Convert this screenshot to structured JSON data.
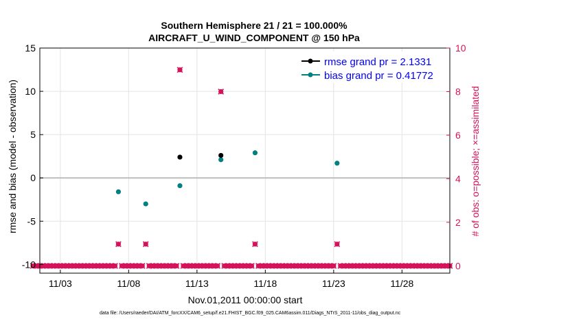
{
  "chart_data": {
    "type": "scatter",
    "title": "Southern Hemisphere 21 / 21 = 100.000%",
    "subtitle": "AIRCRAFT_U_WIND_COMPONENT @ 150 hPa",
    "xlabel": "Nov.01,2011 00:00:00 start",
    "ylabel": "rmse and bias (model - observation)",
    "y2label": "# of obs: o=possible; ×=assimilated",
    "footer": "data file: /Users/raeder/DAI/ATM_forcXX/CAM6_setup/f.e21.FHIST_BGC.f09_025.CAM6assim.011/Diags_NTrS_2011-11/obs_diag_output.nc",
    "xlim": [
      1.5,
      31.5
    ],
    "ylim": [
      -11,
      15
    ],
    "y2lim": [
      -0.3333,
      10
    ],
    "x_ticks": [
      3,
      8,
      13,
      18,
      23,
      28
    ],
    "x_tick_labels": [
      "11/03",
      "11/08",
      "11/13",
      "11/18",
      "11/23",
      "11/28"
    ],
    "y_ticks": [
      15,
      10,
      5,
      0,
      -5,
      -10
    ],
    "y_tick_labels": [
      "15",
      "10",
      "5",
      "0",
      "-5",
      "-10"
    ],
    "y2_ticks": [
      10,
      8,
      6,
      4,
      2,
      0
    ],
    "y2_tick_labels": [
      "10",
      "8",
      "6",
      "4",
      "2",
      "0"
    ],
    "zero_line": 0,
    "grid": true,
    "legend_location": "top-right",
    "series": [
      {
        "name": "rmse grand pr = 2.1331",
        "axis": "left",
        "color": "#000000",
        "marker": "circle",
        "x": [
          11.75,
          14.75
        ],
        "y": [
          2.4,
          2.6
        ]
      },
      {
        "name": "bias grand pr = 0.41772",
        "axis": "left",
        "color": "#008080",
        "marker": "circle",
        "x": [
          7.25,
          9.25,
          11.75,
          14.75,
          17.25,
          23.25
        ],
        "y": [
          -1.6,
          -3.0,
          -0.9,
          2.1,
          2.9,
          1.7
        ]
      },
      {
        "name": "obs possible",
        "axis": "right",
        "color": "#d6125a",
        "marker": "circle",
        "x": [
          7.25,
          9.25,
          11.75,
          14.75,
          17.25,
          23.25
        ],
        "y": [
          1,
          1,
          9,
          8,
          1,
          1
        ]
      },
      {
        "name": "obs assimilated",
        "axis": "right",
        "color": "#d6125a",
        "marker": "x",
        "x": [
          7.25,
          9.25,
          11.75,
          14.75,
          17.25,
          23.25
        ],
        "y": [
          1,
          1,
          9,
          8,
          1,
          1
        ]
      }
    ],
    "zero_count_step": 0.25
  },
  "colors": {
    "right_axis": "#d6125a",
    "legend_text": "#0000ff",
    "zero_line": "#bdbdbd",
    "grid": "#e3e3e3"
  }
}
